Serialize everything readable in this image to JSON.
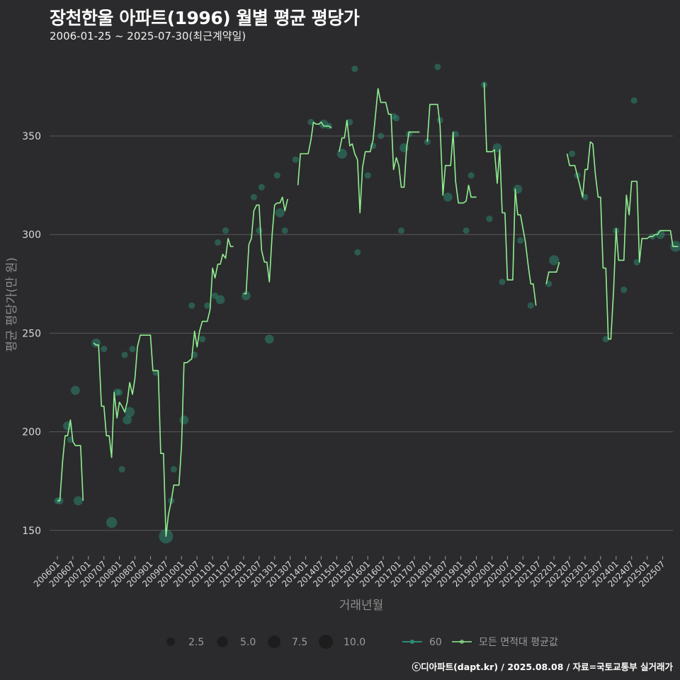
{
  "title": "장천한울 아파트(1996) 월별 평균 평당가",
  "subtitle": "2006-01-25 ~ 2025-07-30(최근계약일)",
  "caption": "ⓒ디아파트(dapt.kr) / 2025.08.08 / 자료=국토교통부 실거래가",
  "colors": {
    "background": "#2b2b2d",
    "line": "#90ee90",
    "point": "#2e8b74",
    "grid": "#5a5a5a",
    "text": "#d8d8d8"
  },
  "chart_data": {
    "type": "line",
    "title": "장천한울 아파트(1996) 월별 평균 평당가",
    "xlabel": "거래년월",
    "ylabel": "평균 평당가(만 원)",
    "ylim": [
      137,
      392
    ],
    "yticks": [
      150,
      200,
      250,
      300,
      350
    ],
    "xlim": [
      2005.75,
      2025.83
    ],
    "xticks": [
      "200601",
      "200607",
      "200701",
      "200707",
      "200801",
      "200807",
      "200901",
      "200907",
      "201001",
      "201007",
      "201101",
      "201107",
      "201201",
      "201207",
      "201301",
      "201307",
      "201401",
      "201407",
      "201501",
      "201507",
      "201601",
      "201607",
      "201701",
      "201707",
      "201801",
      "201807",
      "201901",
      "201907",
      "202001",
      "202007",
      "202101",
      "202107",
      "202201",
      "202207",
      "202301",
      "202307",
      "202401",
      "202407",
      "202501",
      "202507"
    ],
    "legend": {
      "size_title": "",
      "size_items": [
        {
          "label": "2.5",
          "size": 2.5
        },
        {
          "label": "5.0",
          "size": 5.0
        },
        {
          "label": "7.5",
          "size": 7.5
        },
        {
          "label": "10.0",
          "size": 10.0
        }
      ],
      "series_items": [
        {
          "label": "60",
          "kind": "point"
        },
        {
          "label": "모든 면적대 평균값",
          "kind": "line"
        }
      ]
    },
    "line_segments": [
      [
        [
          2006.0,
          165
        ],
        [
          2006.08,
          165
        ],
        [
          2006.17,
          185
        ],
        [
          2006.25,
          198
        ],
        [
          2006.33,
          198
        ],
        [
          2006.42,
          206
        ],
        [
          2006.5,
          195
        ],
        [
          2006.58,
          193
        ],
        [
          2006.67,
          193
        ],
        [
          2006.75,
          193
        ],
        [
          2006.83,
          165
        ]
      ],
      [
        [
          2007.17,
          245
        ],
        [
          2007.25,
          244
        ],
        [
          2007.33,
          244
        ],
        [
          2007.42,
          213
        ],
        [
          2007.5,
          213
        ],
        [
          2007.58,
          198
        ],
        [
          2007.67,
          198
        ],
        [
          2007.75,
          187
        ],
        [
          2007.83,
          220
        ],
        [
          2007.92,
          207
        ],
        [
          2008.0,
          215
        ],
        [
          2008.08,
          213
        ],
        [
          2008.17,
          210
        ],
        [
          2008.25,
          215
        ],
        [
          2008.33,
          225
        ],
        [
          2008.42,
          219
        ],
        [
          2008.5,
          227
        ],
        [
          2008.58,
          243
        ],
        [
          2008.67,
          249
        ],
        [
          2008.75,
          249
        ],
        [
          2008.83,
          249
        ],
        [
          2008.92,
          249
        ],
        [
          2009.0,
          249
        ],
        [
          2009.08,
          231
        ],
        [
          2009.17,
          231
        ],
        [
          2009.25,
          231
        ],
        [
          2009.33,
          189
        ],
        [
          2009.42,
          189
        ],
        [
          2009.5,
          147
        ],
        [
          2009.58,
          158
        ],
        [
          2009.67,
          165
        ],
        [
          2009.75,
          173
        ],
        [
          2009.83,
          173
        ],
        [
          2009.92,
          173
        ],
        [
          2010.0,
          193
        ],
        [
          2010.08,
          235
        ],
        [
          2010.17,
          235
        ],
        [
          2010.25,
          236
        ],
        [
          2010.33,
          237
        ],
        [
          2010.42,
          251
        ],
        [
          2010.5,
          243
        ],
        [
          2010.58,
          251
        ],
        [
          2010.67,
          256
        ],
        [
          2010.75,
          256
        ],
        [
          2010.83,
          256
        ],
        [
          2010.92,
          262
        ],
        [
          2011.0,
          283
        ],
        [
          2011.08,
          278
        ],
        [
          2011.17,
          285
        ],
        [
          2011.25,
          285
        ],
        [
          2011.33,
          290
        ],
        [
          2011.42,
          288
        ],
        [
          2011.5,
          298
        ],
        [
          2011.58,
          294
        ],
        [
          2011.67,
          294
        ]
      ],
      [
        [
          2012.0,
          270
        ],
        [
          2012.08,
          270
        ],
        [
          2012.17,
          295
        ],
        [
          2012.25,
          298
        ],
        [
          2012.33,
          312
        ],
        [
          2012.42,
          315
        ],
        [
          2012.5,
          315
        ],
        [
          2012.58,
          292
        ],
        [
          2012.67,
          286
        ],
        [
          2012.75,
          286
        ],
        [
          2012.83,
          276
        ],
        [
          2012.92,
          300
        ],
        [
          2013.0,
          315
        ],
        [
          2013.08,
          316
        ],
        [
          2013.17,
          316
        ],
        [
          2013.25,
          319
        ],
        [
          2013.33,
          312
        ],
        [
          2013.42,
          318
        ]
      ],
      [
        [
          2013.75,
          325
        ],
        [
          2013.83,
          341
        ],
        [
          2013.92,
          341
        ],
        [
          2014.0,
          341
        ],
        [
          2014.08,
          341
        ],
        [
          2014.17,
          348
        ],
        [
          2014.25,
          357
        ],
        [
          2014.33,
          356
        ],
        [
          2014.42,
          356
        ],
        [
          2014.5,
          357
        ],
        [
          2014.58,
          355
        ],
        [
          2014.67,
          355
        ],
        [
          2014.75,
          355
        ],
        [
          2014.83,
          354
        ]
      ],
      [
        [
          2015.08,
          342
        ],
        [
          2015.17,
          349
        ],
        [
          2015.25,
          349
        ],
        [
          2015.33,
          358
        ],
        [
          2015.42,
          345
        ],
        [
          2015.5,
          346
        ],
        [
          2015.58,
          341
        ],
        [
          2015.67,
          338
        ],
        [
          2015.75,
          311
        ],
        [
          2015.83,
          334
        ],
        [
          2015.92,
          342
        ],
        [
          2016.0,
          342
        ],
        [
          2016.08,
          342
        ],
        [
          2016.17,
          348
        ],
        [
          2016.25,
          361
        ],
        [
          2016.33,
          374
        ],
        [
          2016.42,
          367
        ],
        [
          2016.5,
          367
        ],
        [
          2016.58,
          367
        ],
        [
          2016.67,
          361
        ],
        [
          2016.75,
          361
        ],
        [
          2016.83,
          333
        ],
        [
          2016.92,
          339
        ],
        [
          2017.0,
          335
        ],
        [
          2017.08,
          324
        ],
        [
          2017.17,
          324
        ],
        [
          2017.25,
          344
        ],
        [
          2017.33,
          352
        ],
        [
          2017.42,
          352
        ],
        [
          2017.5,
          352
        ],
        [
          2017.58,
          352
        ],
        [
          2017.67,
          352
        ]
      ],
      [
        [
          2017.92,
          347
        ],
        [
          2018.0,
          366
        ],
        [
          2018.08,
          366
        ],
        [
          2018.17,
          366
        ],
        [
          2018.25,
          366
        ],
        [
          2018.33,
          355
        ],
        [
          2018.42,
          320
        ],
        [
          2018.5,
          335
        ],
        [
          2018.58,
          335
        ],
        [
          2018.67,
          335
        ],
        [
          2018.75,
          352
        ],
        [
          2018.83,
          327
        ],
        [
          2018.92,
          316
        ],
        [
          2019.0,
          316
        ],
        [
          2019.08,
          316
        ],
        [
          2019.17,
          317
        ],
        [
          2019.25,
          325
        ],
        [
          2019.33,
          319
        ],
        [
          2019.42,
          319
        ],
        [
          2019.5,
          319
        ]
      ],
      [
        [
          2019.75,
          377
        ],
        [
          2019.83,
          342
        ],
        [
          2019.92,
          342
        ],
        [
          2020.0,
          342
        ],
        [
          2020.08,
          343
        ],
        [
          2020.17,
          326
        ],
        [
          2020.25,
          343
        ],
        [
          2020.33,
          311
        ],
        [
          2020.42,
          311
        ],
        [
          2020.5,
          277
        ],
        [
          2020.58,
          277
        ],
        [
          2020.67,
          277
        ],
        [
          2020.75,
          323
        ],
        [
          2020.83,
          310
        ],
        [
          2020.92,
          310
        ],
        [
          2021.0,
          303
        ],
        [
          2021.08,
          296
        ],
        [
          2021.17,
          284
        ],
        [
          2021.25,
          275
        ],
        [
          2021.33,
          275
        ],
        [
          2021.42,
          264
        ]
      ],
      [
        [
          2021.75,
          275
        ],
        [
          2021.83,
          281
        ],
        [
          2021.92,
          281
        ],
        [
          2022.0,
          281
        ],
        [
          2022.08,
          281
        ],
        [
          2022.17,
          286
        ]
      ],
      [
        [
          2022.42,
          341
        ],
        [
          2022.5,
          335
        ],
        [
          2022.58,
          335
        ],
        [
          2022.67,
          335
        ],
        [
          2022.75,
          330
        ],
        [
          2022.83,
          325
        ],
        [
          2022.92,
          319
        ],
        [
          2023.0,
          333
        ],
        [
          2023.08,
          333
        ],
        [
          2023.17,
          347
        ],
        [
          2023.25,
          346
        ],
        [
          2023.33,
          331
        ],
        [
          2023.42,
          319
        ],
        [
          2023.5,
          319
        ],
        [
          2023.58,
          283
        ],
        [
          2023.67,
          283
        ],
        [
          2023.75,
          247
        ],
        [
          2023.83,
          247
        ],
        [
          2023.92,
          272
        ],
        [
          2024.0,
          303
        ],
        [
          2024.08,
          287
        ],
        [
          2024.17,
          287
        ],
        [
          2024.25,
          287
        ],
        [
          2024.33,
          320
        ],
        [
          2024.42,
          310
        ],
        [
          2024.5,
          327
        ],
        [
          2024.58,
          327
        ],
        [
          2024.67,
          327
        ],
        [
          2024.75,
          286
        ],
        [
          2024.83,
          298
        ],
        [
          2024.92,
          298
        ],
        [
          2025.0,
          298
        ],
        [
          2025.08,
          299
        ],
        [
          2025.17,
          299
        ],
        [
          2025.25,
          300
        ],
        [
          2025.33,
          300
        ],
        [
          2025.42,
          302
        ],
        [
          2025.5,
          302
        ],
        [
          2025.58,
          302
        ],
        [
          2025.67,
          302
        ],
        [
          2025.75,
          302
        ],
        [
          2025.83,
          294
        ],
        [
          2025.92,
          294
        ],
        [
          2026.0,
          294
        ]
      ]
    ],
    "points": [
      [
        2006.0,
        165,
        1
      ],
      [
        2006.08,
        165,
        1.5
      ],
      [
        2006.33,
        203,
        3
      ],
      [
        2006.42,
        196,
        1
      ],
      [
        2006.58,
        221,
        3
      ],
      [
        2006.67,
        165,
        3
      ],
      [
        2007.25,
        245,
        3
      ],
      [
        2007.5,
        242,
        1
      ],
      [
        2007.75,
        154,
        5
      ],
      [
        2007.92,
        220,
        1.5
      ],
      [
        2008.0,
        220,
        1
      ],
      [
        2008.08,
        181,
        1
      ],
      [
        2008.17,
        239,
        1
      ],
      [
        2008.25,
        206,
        3
      ],
      [
        2008.33,
        210,
        4
      ],
      [
        2008.42,
        242,
        1
      ],
      [
        2009.17,
        230,
        1
      ],
      [
        2009.5,
        147,
        10
      ],
      [
        2009.67,
        165,
        1
      ],
      [
        2009.75,
        181,
        1
      ],
      [
        2010.08,
        206,
        3
      ],
      [
        2010.33,
        264,
        1
      ],
      [
        2010.42,
        239,
        1
      ],
      [
        2010.67,
        247,
        1
      ],
      [
        2010.83,
        264,
        1
      ],
      [
        2011.08,
        269,
        1
      ],
      [
        2011.17,
        296,
        1
      ],
      [
        2011.25,
        267,
        3
      ],
      [
        2011.42,
        302,
        1
      ],
      [
        2012.08,
        269,
        3
      ],
      [
        2012.33,
        319,
        1
      ],
      [
        2012.5,
        302,
        1
      ],
      [
        2012.58,
        324,
        1
      ],
      [
        2012.83,
        247,
        3
      ],
      [
        2013.08,
        330,
        1
      ],
      [
        2013.17,
        311,
        3
      ],
      [
        2013.33,
        302,
        1
      ],
      [
        2013.67,
        338,
        1
      ],
      [
        2014.17,
        357,
        1
      ],
      [
        2014.58,
        356,
        3
      ],
      [
        2014.75,
        355,
        1
      ],
      [
        2015.17,
        341,
        4
      ],
      [
        2015.42,
        357,
        1
      ],
      [
        2015.58,
        384,
        1
      ],
      [
        2015.67,
        291,
        1
      ],
      [
        2016.0,
        330,
        1
      ],
      [
        2016.17,
        345,
        1
      ],
      [
        2016.42,
        350,
        1
      ],
      [
        2016.83,
        360,
        1
      ],
      [
        2016.92,
        359,
        1
      ],
      [
        2017.08,
        302,
        1
      ],
      [
        2017.17,
        344,
        3
      ],
      [
        2017.33,
        351,
        1
      ],
      [
        2017.92,
        347,
        1
      ],
      [
        2018.25,
        385,
        1
      ],
      [
        2018.33,
        358,
        1
      ],
      [
        2018.58,
        319,
        3
      ],
      [
        2018.83,
        351,
        1
      ],
      [
        2019.17,
        302,
        1
      ],
      [
        2019.33,
        330,
        1
      ],
      [
        2019.75,
        376,
        1
      ],
      [
        2019.92,
        308,
        1
      ],
      [
        2020.17,
        344,
        3
      ],
      [
        2020.33,
        276,
        1
      ],
      [
        2020.83,
        323,
        3
      ],
      [
        2020.92,
        297,
        1
      ],
      [
        2021.25,
        264,
        1
      ],
      [
        2021.83,
        275,
        1
      ],
      [
        2022.0,
        287,
        4
      ],
      [
        2022.58,
        341,
        1
      ],
      [
        2022.75,
        330,
        1
      ],
      [
        2023.0,
        319,
        1
      ],
      [
        2023.67,
        247,
        1
      ],
      [
        2024.0,
        302,
        1
      ],
      [
        2024.25,
        272,
        1
      ],
      [
        2024.58,
        368,
        1
      ],
      [
        2024.67,
        286,
        1
      ],
      [
        2025.17,
        299,
        1
      ],
      [
        2025.42,
        300,
        3
      ],
      [
        2025.92,
        294,
        5
      ]
    ]
  }
}
